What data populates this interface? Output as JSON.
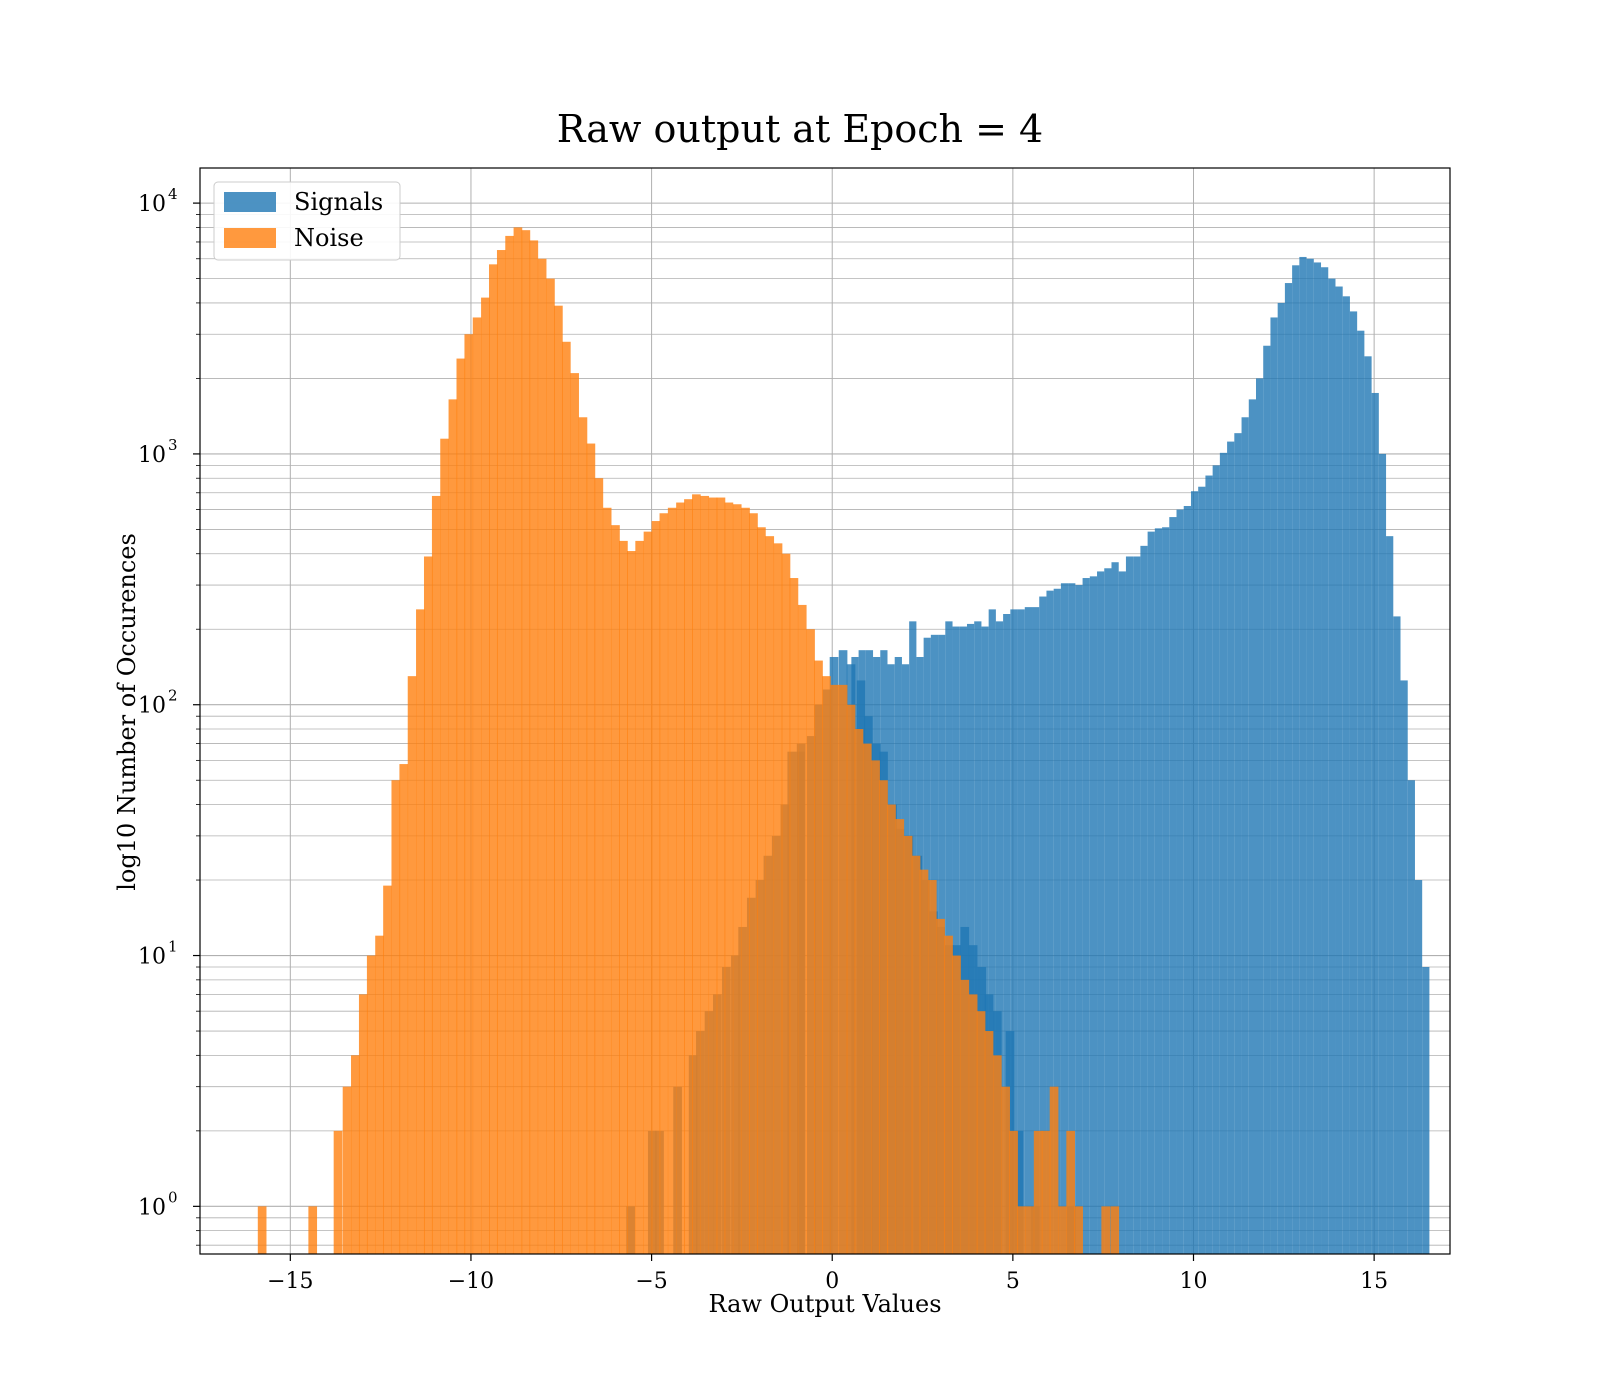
{
  "chart_data": {
    "type": "bar",
    "title": "Raw output at Epoch = 4",
    "xlabel": "Raw Output Values",
    "ylabel": "log10 Number of Occurences",
    "xlim": [
      -17.5,
      17.1
    ],
    "ylim_log10": [
      -0.19,
      4.14
    ],
    "y_scale": "log",
    "x_ticks": [
      -15,
      -10,
      -5,
      0,
      5,
      10,
      15
    ],
    "x_tick_labels": [
      "−15",
      "−10",
      "−5",
      "0",
      "5",
      "10",
      "15"
    ],
    "y_ticks": [
      {
        "base": "10",
        "exp": "0",
        "value": 1
      },
      {
        "base": "10",
        "exp": "1",
        "value": 10
      },
      {
        "base": "10",
        "exp": "2",
        "value": 100
      },
      {
        "base": "10",
        "exp": "3",
        "value": 1000
      },
      {
        "base": "10",
        "exp": "4",
        "value": 10000
      }
    ],
    "grid": true,
    "legend_position": "upper-left",
    "series": [
      {
        "name": "Signals",
        "color": "#1f77b4",
        "opacity": 0.8,
        "bin_width": 0.24,
        "bins": [
          [
            -5.7,
            1
          ],
          [
            -5.1,
            2
          ],
          [
            -4.9,
            2
          ],
          [
            -4.4,
            3
          ],
          [
            -3.97,
            4
          ],
          [
            -3.77,
            5
          ],
          [
            -3.53,
            6
          ],
          [
            -3.3,
            7
          ],
          [
            -3.05,
            9
          ],
          [
            -2.8,
            10
          ],
          [
            -2.6,
            13
          ],
          [
            -2.36,
            17
          ],
          [
            -2.12,
            20
          ],
          [
            -1.9,
            25
          ],
          [
            -1.67,
            30
          ],
          [
            -1.43,
            40
          ],
          [
            -1.24,
            65
          ],
          [
            -1.0,
            65
          ],
          [
            -0.98,
            70
          ],
          [
            -0.7,
            75
          ],
          [
            -0.5,
            100
          ],
          [
            -0.26,
            115
          ],
          [
            -0.07,
            155
          ],
          [
            0.18,
            165
          ],
          [
            0.4,
            145
          ],
          [
            0.68,
            125
          ],
          [
            0.88,
            90
          ],
          [
            1.1,
            70
          ],
          [
            1.3,
            65
          ],
          [
            1.55,
            40
          ],
          [
            1.75,
            32
          ],
          [
            2.0,
            30
          ],
          [
            2.25,
            25
          ],
          [
            2.45,
            20
          ],
          [
            2.68,
            15
          ],
          [
            2.88,
            13
          ],
          [
            3.12,
            11
          ],
          [
            3.32,
            11
          ],
          [
            3.55,
            13
          ],
          [
            3.78,
            11
          ],
          [
            4.02,
            9
          ],
          [
            4.22,
            7
          ],
          [
            4.45,
            6
          ],
          [
            4.8,
            5
          ],
          [
            5.05,
            2
          ],
          [
            5.5,
            1
          ],
          [
            6.5,
            1
          ]
        ],
        "main": {
          "x_start": 0.53,
          "values": [
            155,
            165,
            165,
            155,
            165,
            145,
            155,
            145,
            215,
            155,
            185,
            190,
            190,
            215,
            205,
            205,
            210,
            215,
            205,
            240,
            215,
            230,
            240,
            240,
            245,
            245,
            270,
            285,
            290,
            305,
            305,
            300,
            320,
            325,
            340,
            350,
            370,
            340,
            390,
            390,
            430,
            490,
            505,
            510,
            560,
            600,
            620,
            710,
            740,
            820,
            900,
            1010,
            1120,
            1210,
            1400,
            1650,
            2000,
            2700,
            3500,
            4000,
            4800,
            5650,
            6100,
            6000,
            5800,
            5550,
            5000,
            4650,
            4250,
            3700,
            3100,
            2450,
            1750,
            1000,
            470,
            225,
            125,
            50,
            20,
            9
          ],
          "bin_width": 0.2
        }
      },
      {
        "name": "Noise",
        "color": "#ff7f0e",
        "opacity": 0.8,
        "bin_width": 0.24,
        "bins": [
          [
            -15.9,
            1
          ],
          [
            -14.5,
            1
          ],
          [
            -13.8,
            2
          ],
          [
            -13.55,
            3
          ],
          [
            -13.32,
            4
          ],
          [
            -13.1,
            7
          ],
          [
            -12.88,
            10
          ],
          [
            -12.65,
            12
          ],
          [
            -12.43,
            19
          ],
          [
            -12.2,
            50
          ],
          [
            -11.98,
            58
          ],
          [
            -11.75,
            130
          ],
          [
            -11.52,
            240
          ],
          [
            -11.3,
            390
          ],
          [
            -11.08,
            680
          ],
          [
            -10.85,
            1150
          ],
          [
            -10.62,
            1650
          ],
          [
            -10.4,
            2400
          ],
          [
            -10.18,
            3000
          ],
          [
            -9.95,
            3500
          ],
          [
            -9.72,
            4200
          ],
          [
            -9.5,
            5700
          ],
          [
            -9.28,
            6500
          ],
          [
            -9.05,
            7400
          ],
          [
            -8.82,
            8000
          ],
          [
            -8.6,
            7800
          ],
          [
            -8.38,
            7100
          ],
          [
            -8.15,
            6000
          ],
          [
            -7.92,
            5000
          ],
          [
            -7.7,
            3900
          ],
          [
            -7.48,
            2800
          ],
          [
            -7.25,
            2100
          ],
          [
            -7.02,
            1400
          ],
          [
            -6.8,
            1100
          ],
          [
            -6.58,
            800
          ],
          [
            -6.35,
            610
          ],
          [
            -6.12,
            520
          ],
          [
            -5.9,
            450
          ],
          [
            -5.68,
            410
          ],
          [
            -5.45,
            450
          ],
          [
            -5.22,
            490
          ],
          [
            -5.0,
            540
          ],
          [
            -4.78,
            580
          ],
          [
            -4.55,
            610
          ],
          [
            -4.32,
            640
          ],
          [
            -4.1,
            660
          ],
          [
            -3.88,
            690
          ],
          [
            -3.65,
            680
          ],
          [
            -3.42,
            670
          ],
          [
            -3.2,
            670
          ],
          [
            -2.98,
            640
          ],
          [
            -2.75,
            630
          ],
          [
            -2.52,
            610
          ],
          [
            -2.3,
            580
          ],
          [
            -2.08,
            510
          ],
          [
            -1.85,
            470
          ],
          [
            -1.62,
            440
          ],
          [
            -1.4,
            400
          ],
          [
            -1.18,
            320
          ],
          [
            -0.95,
            250
          ],
          [
            -0.72,
            200
          ],
          [
            -0.5,
            150
          ],
          [
            -0.28,
            130
          ],
          [
            -0.05,
            120
          ],
          [
            0.18,
            120
          ],
          [
            0.4,
            100
          ],
          [
            0.62,
            80
          ],
          [
            0.85,
            70
          ],
          [
            1.08,
            60
          ],
          [
            1.3,
            50
          ],
          [
            1.52,
            40
          ],
          [
            1.75,
            35
          ],
          [
            1.98,
            30
          ],
          [
            2.2,
            25
          ],
          [
            2.42,
            22
          ],
          [
            2.65,
            20
          ],
          [
            2.88,
            14
          ],
          [
            3.1,
            12
          ],
          [
            3.32,
            10
          ],
          [
            3.55,
            8
          ],
          [
            3.78,
            7
          ],
          [
            4.0,
            6
          ],
          [
            4.22,
            5
          ],
          [
            4.45,
            4
          ],
          [
            4.68,
            3
          ],
          [
            4.9,
            2
          ],
          [
            5.12,
            1
          ],
          [
            5.35,
            1
          ],
          [
            5.58,
            2
          ],
          [
            5.8,
            2
          ],
          [
            6.02,
            3
          ],
          [
            6.25,
            1
          ],
          [
            6.48,
            2
          ],
          [
            6.7,
            1
          ],
          [
            7.45,
            1
          ],
          [
            7.7,
            1
          ]
        ]
      }
    ]
  }
}
